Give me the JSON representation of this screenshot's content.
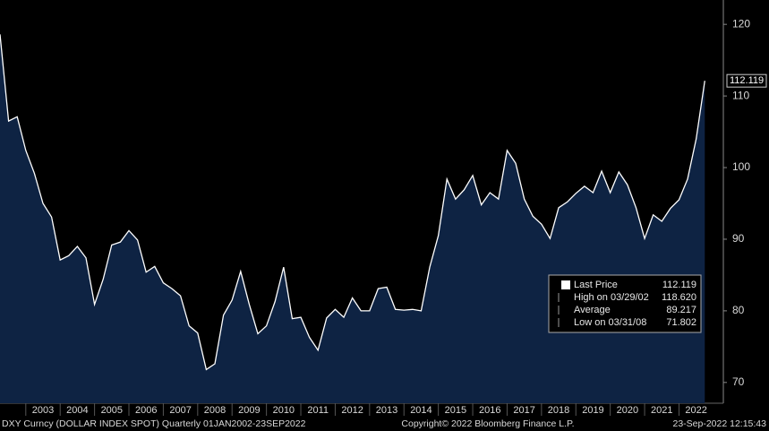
{
  "chart_data": {
    "type": "area",
    "color": "#0e2343",
    "line_color": "#ffffff",
    "x": [
      2002.25,
      2002.5,
      2002.75,
      2003,
      2003.25,
      2003.5,
      2003.75,
      2004,
      2004.25,
      2004.5,
      2004.75,
      2005,
      2005.25,
      2005.5,
      2005.75,
      2006,
      2006.25,
      2006.5,
      2006.75,
      2007,
      2007.25,
      2007.5,
      2007.75,
      2008,
      2008.25,
      2008.5,
      2008.75,
      2009,
      2009.25,
      2009.5,
      2009.75,
      2010,
      2010.25,
      2010.5,
      2010.75,
      2011,
      2011.25,
      2011.5,
      2011.75,
      2012,
      2012.25,
      2012.5,
      2012.75,
      2013,
      2013.25,
      2013.5,
      2013.75,
      2014,
      2014.25,
      2014.5,
      2014.75,
      2015,
      2015.25,
      2015.5,
      2015.75,
      2016,
      2016.25,
      2016.5,
      2016.75,
      2017,
      2017.25,
      2017.5,
      2017.75,
      2018,
      2018.25,
      2018.5,
      2018.75,
      2019,
      2019.25,
      2019.5,
      2019.75,
      2020,
      2020.25,
      2020.5,
      2020.75,
      2021,
      2021.25,
      2021.5,
      2021.75,
      2022,
      2022.25,
      2022.5,
      2022.75
    ],
    "values": [
      118.6,
      106.5,
      107.1,
      102.4,
      99.2,
      95,
      93.1,
      87.1,
      87.7,
      89,
      87.4,
      80.9,
      84.4,
      89.2,
      89.6,
      91.2,
      89.9,
      85.4,
      86.2,
      83.9,
      83.1,
      82.1,
      77.9,
      76.9,
      71.8,
      72.6,
      79.4,
      81.5,
      85.5,
      80.9,
      76.8,
      77.9,
      81.3,
      86.1,
      78.9,
      79.1,
      76.3,
      74.5,
      79,
      80.2,
      79.1,
      81.8,
      80,
      80,
      83.1,
      83.3,
      80.2,
      80.1,
      80.2,
      80,
      86.1,
      90.5,
      98.4,
      95.6,
      96.9,
      98.9,
      94.8,
      96.5,
      95.6,
      102.4,
      100.6,
      95.6,
      93.2,
      92.1,
      90.1,
      94.4,
      95.2,
      96.4,
      97.4,
      96.5,
      99.5,
      96.5,
      99.4,
      97.6,
      94.4,
      90.1,
      93.4,
      92.5,
      94.3,
      95.5,
      98.4,
      104,
      112.119
    ],
    "xlim": [
      2002.25,
      2023.29
    ],
    "xticks": [
      {
        "value": 2003.5,
        "label": "2003"
      },
      {
        "value": 2004.5,
        "label": "2004"
      },
      {
        "value": 2005.5,
        "label": "2005"
      },
      {
        "value": 2006.5,
        "label": "2006"
      },
      {
        "value": 2007.5,
        "label": "2007"
      },
      {
        "value": 2008.5,
        "label": "2008"
      },
      {
        "value": 2009.5,
        "label": "2009"
      },
      {
        "value": 2010.5,
        "label": "2010"
      },
      {
        "value": 2011.5,
        "label": "2011"
      },
      {
        "value": 2012.5,
        "label": "2012"
      },
      {
        "value": 2013.5,
        "label": "2013"
      },
      {
        "value": 2014.5,
        "label": "2014"
      },
      {
        "value": 2015.5,
        "label": "2015"
      },
      {
        "value": 2016.5,
        "label": "2016"
      },
      {
        "value": 2017.5,
        "label": "2017"
      },
      {
        "value": 2018.5,
        "label": "2018"
      },
      {
        "value": 2019.5,
        "label": "2019"
      },
      {
        "value": 2020.5,
        "label": "2020"
      },
      {
        "value": 2021.5,
        "label": "2021"
      },
      {
        "value": 2022.5,
        "label": "2022"
      }
    ],
    "ylim": [
      67.1,
      123.4
    ],
    "yticks": [
      70,
      80,
      90,
      100,
      110,
      120
    ],
    "stats": {
      "labels": [
        "Last Price",
        "High on 03/29/02",
        "Average",
        "Low on 03/31/08"
      ],
      "values": [
        112.119,
        118.62,
        89.217,
        71.802
      ],
      "value_labels": [
        "112.119",
        "118.620",
        "89.217",
        "71.802"
      ]
    },
    "footer_left": "DXY Curncy (DOLLAR INDEX SPOT)  Quarterly 01JAN2002-23SEP2022",
    "footer_center": "Copyright© 2022 Bloomberg Finance L.P.",
    "footer_right": "23-Sep-2022 12:15:43"
  }
}
